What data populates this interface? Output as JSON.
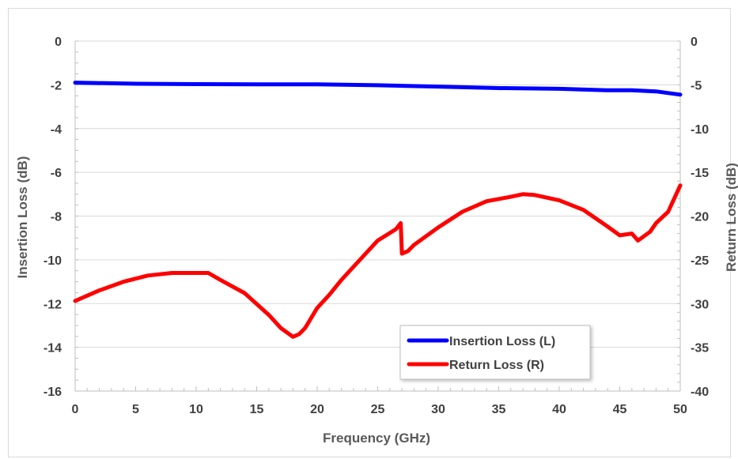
{
  "chart_data": {
    "type": "line",
    "xlabel": "Frequency (GHz)",
    "ylabel_left": "Insertion Loss (dB)",
    "ylabel_right": "Return Loss (dB)",
    "xlim": [
      0,
      50
    ],
    "ylim_left": [
      -16,
      0
    ],
    "ylim_right": [
      -40,
      0
    ],
    "x_ticks": [
      "0",
      "5",
      "10",
      "15",
      "20",
      "25",
      "30",
      "35",
      "40",
      "45",
      "50"
    ],
    "y_ticks_left": [
      "0",
      "-2",
      "-4",
      "-6",
      "-8",
      "-10",
      "-12",
      "-14",
      "-16"
    ],
    "y_ticks_right": [
      "0",
      "-5",
      "-10",
      "-15",
      "-20",
      "-25",
      "-30",
      "-35",
      "-40"
    ],
    "grid": "horizontal",
    "legend_position": "bottom-right",
    "series": [
      {
        "name": "Insertion Loss (L)",
        "axis": "left",
        "color": "#0000ff",
        "x": [
          0,
          5,
          10,
          15,
          20,
          25,
          30,
          35,
          40,
          44,
          46,
          48,
          50
        ],
        "y": [
          -1.9,
          -1.95,
          -1.97,
          -1.98,
          -1.98,
          -2.02,
          -2.08,
          -2.15,
          -2.18,
          -2.25,
          -2.25,
          -2.3,
          -2.45
        ]
      },
      {
        "name": "Return Loss (R)",
        "axis": "right",
        "color": "#ff0000",
        "x": [
          0,
          2,
          4,
          6,
          8,
          10,
          11,
          12,
          14,
          16,
          17,
          18,
          18.5,
          19,
          20,
          21,
          22,
          23,
          24,
          25,
          26.5,
          26.9,
          27,
          27.5,
          28,
          30,
          32,
          34,
          36,
          37,
          38,
          40,
          42,
          44,
          45,
          46,
          46.5,
          47,
          47.5,
          48,
          49,
          50
        ],
        "y": [
          -29.7,
          -28.5,
          -27.5,
          -26.8,
          -26.5,
          -26.5,
          -26.5,
          -27.3,
          -28.8,
          -31.3,
          -32.8,
          -33.8,
          -33.5,
          -32.8,
          -30.5,
          -29.0,
          -27.3,
          -25.8,
          -24.3,
          -22.8,
          -21.5,
          -20.8,
          -24.3,
          -24.0,
          -23.3,
          -21.3,
          -19.5,
          -18.3,
          -17.8,
          -17.5,
          -17.6,
          -18.2,
          -19.3,
          -21.2,
          -22.2,
          -22.0,
          -22.8,
          -22.3,
          -21.8,
          -20.8,
          -19.5,
          -16.5
        ]
      }
    ]
  }
}
